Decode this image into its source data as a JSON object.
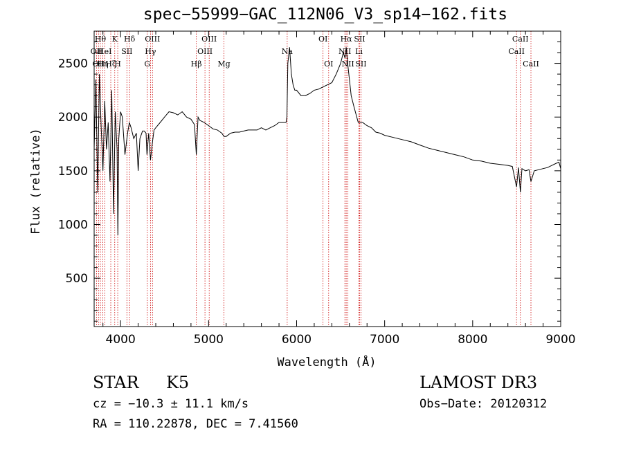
{
  "chart_data": {
    "type": "line",
    "title": "spec−55999−GAC_112N06_V3_sp14−162.fits",
    "xlabel": "Wavelength (Å)",
    "ylabel": "Flux (relative)",
    "xlim": [
      3700,
      9000
    ],
    "ylim": [
      50,
      2800
    ],
    "x_ticks": [
      4000,
      5000,
      6000,
      7000,
      8000,
      9000
    ],
    "y_ticks": [
      500,
      1000,
      1500,
      2000,
      2500
    ],
    "series": [
      {
        "name": "spectrum",
        "x": [
          3700,
          3720,
          3740,
          3760,
          3780,
          3800,
          3820,
          3840,
          3860,
          3880,
          3900,
          3920,
          3940,
          3960,
          3970,
          3980,
          4000,
          4020,
          4050,
          4080,
          4100,
          4120,
          4150,
          4180,
          4200,
          4220,
          4250,
          4270,
          4290,
          4300,
          4320,
          4340,
          4360,
          4380,
          4400,
          4450,
          4500,
          4550,
          4600,
          4650,
          4700,
          4750,
          4800,
          4840,
          4861,
          4880,
          4900,
          4950,
          5000,
          5050,
          5100,
          5150,
          5175,
          5200,
          5250,
          5300,
          5350,
          5400,
          5450,
          5500,
          5550,
          5600,
          5650,
          5700,
          5750,
          5800,
          5850,
          5880,
          5890,
          5900,
          5920,
          5940,
          5960,
          5980,
          6000,
          6050,
          6100,
          6150,
          6200,
          6250,
          6300,
          6350,
          6400,
          6450,
          6500,
          6530,
          6550,
          6563,
          6580,
          6600,
          6620,
          6650,
          6700,
          6750,
          6800,
          6850,
          6900,
          6950,
          7000,
          7100,
          7200,
          7300,
          7400,
          7500,
          7600,
          7700,
          7800,
          7900,
          8000,
          8100,
          8200,
          8300,
          8400,
          8450,
          8498,
          8520,
          8542,
          8560,
          8600,
          8640,
          8662,
          8700,
          8750,
          8800,
          8850,
          8900,
          8950,
          8980,
          9000
        ],
        "y": [
          1700,
          2350,
          1300,
          2400,
          1900,
          1500,
          2150,
          1700,
          1950,
          1400,
          2250,
          1100,
          2050,
          1700,
          900,
          1800,
          2050,
          2000,
          1650,
          1850,
          1950,
          1900,
          1800,
          1850,
          1500,
          1800,
          1870,
          1870,
          1850,
          1650,
          1850,
          1600,
          1750,
          1880,
          1900,
          1950,
          2000,
          2050,
          2040,
          2020,
          2050,
          2000,
          1980,
          1930,
          1650,
          2000,
          1970,
          1950,
          1920,
          1890,
          1880,
          1850,
          1820,
          1820,
          1850,
          1860,
          1860,
          1870,
          1880,
          1880,
          1880,
          1900,
          1880,
          1900,
          1920,
          1950,
          1950,
          1950,
          2000,
          2500,
          2650,
          2400,
          2300,
          2250,
          2250,
          2200,
          2200,
          2220,
          2250,
          2260,
          2280,
          2300,
          2320,
          2400,
          2500,
          2600,
          2550,
          2650,
          2500,
          2350,
          2200,
          2100,
          1950,
          1950,
          1920,
          1900,
          1860,
          1850,
          1830,
          1810,
          1790,
          1770,
          1740,
          1710,
          1690,
          1670,
          1650,
          1630,
          1600,
          1590,
          1570,
          1560,
          1550,
          1540,
          1350,
          1530,
          1300,
          1520,
          1500,
          1510,
          1400,
          1500,
          1510,
          1520,
          1530,
          1550,
          1570,
          1580,
          1520
        ]
      }
    ],
    "line_markers": [
      {
        "wl": 3727,
        "label": "OII",
        "row": 1
      },
      {
        "wl": 3750,
        "label": "OII",
        "row": 2
      },
      {
        "wl": 3771,
        "label": "Hθ",
        "row": 0
      },
      {
        "wl": 3798,
        "label": "Hη",
        "row": 2
      },
      {
        "wl": 3820,
        "label": "HeI",
        "row": 1
      },
      {
        "wl": 3889,
        "label": "Hζ",
        "row": 2
      },
      {
        "wl": 3934,
        "label": "K",
        "row": 0
      },
      {
        "wl": 3968,
        "label": "H",
        "row": 2
      },
      {
        "wl": 4072,
        "label": "SII",
        "row": 1
      },
      {
        "wl": 4102,
        "label": "Hδ",
        "row": 0
      },
      {
        "wl": 4304,
        "label": "G",
        "row": 2
      },
      {
        "wl": 4340,
        "label": "Hγ",
        "row": 1
      },
      {
        "wl": 4363,
        "label": "OIII",
        "row": 0
      },
      {
        "wl": 4861,
        "label": "Hβ",
        "row": 2
      },
      {
        "wl": 4959,
        "label": "OIII",
        "row": 1
      },
      {
        "wl": 5007,
        "label": "OIII",
        "row": 0
      },
      {
        "wl": 5175,
        "label": "Mg",
        "row": 2
      },
      {
        "wl": 5893,
        "label": "Na",
        "row": 1
      },
      {
        "wl": 6300,
        "label": "OI",
        "row": 0
      },
      {
        "wl": 6364,
        "label": "OI",
        "row": 2
      },
      {
        "wl": 6548,
        "label": "NII",
        "row": 1
      },
      {
        "wl": 6563,
        "label": "Hα",
        "row": 0
      },
      {
        "wl": 6583,
        "label": "NII",
        "row": 2
      },
      {
        "wl": 6708,
        "label": "Li",
        "row": 1
      },
      {
        "wl": 6716,
        "label": "SII",
        "row": 0
      },
      {
        "wl": 6731,
        "label": "SII",
        "row": 2
      },
      {
        "wl": 8498,
        "label": "CaII",
        "row": 1
      },
      {
        "wl": 8542,
        "label": "CaII",
        "row": 0
      },
      {
        "wl": 8662,
        "label": "CaII",
        "row": 2
      }
    ],
    "colors": {
      "spectrum": "#000000",
      "marker": "#cc0000",
      "axes": "#000000"
    }
  },
  "info": {
    "object_class": "STAR",
    "subclass": "K5",
    "survey": "LAMOST DR3",
    "redshift": "cz = −10.3 ± 11.1 km/s",
    "obs_date": "Obs−Date: 20120312",
    "coords": "RA = 110.22878, DEC =    7.41560"
  }
}
